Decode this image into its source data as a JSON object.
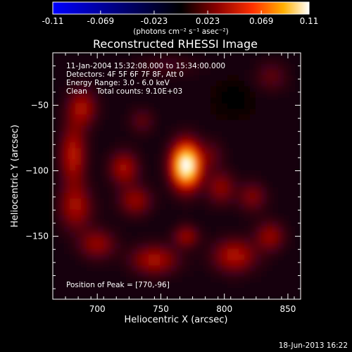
{
  "colorbar": {
    "tick_labels": [
      "-0.11",
      "-0.069",
      "-0.023",
      "0.023",
      "0.069",
      "0.11"
    ],
    "tick_values": [
      -0.11,
      -0.069,
      -0.023,
      0.023,
      0.069,
      0.11
    ],
    "range": [
      -0.11,
      0.11
    ],
    "units_label": "(photons cm⁻² s⁻¹ asec⁻²)",
    "colors": [
      "#0000ff",
      "#000000",
      "#b00000",
      "#ff8000",
      "#ffffff"
    ]
  },
  "plot": {
    "title": "Reconstructed RHESSI Image",
    "xlabel": "Heliocentric X (arcsec)",
    "ylabel": "Heliocentric Y (arcsec)",
    "info_lines": [
      "11-Jan-2004 15:32:08.000 to 15:34:00.000",
      "Detectors: 4F 5F 6F 7F 8F, Att 0",
      "Energy Range: 3.0 - 6.0 keV",
      "Clean    Total counts: 9.10E+03"
    ],
    "peak_text": "Position of Peak = [770,-96]",
    "frame_color": "#ffffff"
  },
  "chart_data": {
    "type": "heatmap",
    "title": "Reconstructed RHESSI Image",
    "xlabel": "Heliocentric X (arcsec)",
    "ylabel": "Heliocentric Y (arcsec)",
    "xlim": [
      665,
      860
    ],
    "ylim": [
      -198,
      -10
    ],
    "x_ticks": [
      700,
      750,
      800,
      850
    ],
    "y_ticks": [
      -50,
      -100,
      -150
    ],
    "x_tick_labels": [
      "700",
      "750",
      "800",
      "850"
    ],
    "y_tick_labels": [
      "−50",
      "−100",
      "−150"
    ],
    "value_range": [
      -0.11,
      0.11
    ],
    "peak": {
      "x": 770,
      "y": -96,
      "value": 0.11
    },
    "sources": [
      {
        "x": 770,
        "y": -96,
        "sx": 8,
        "sy": 12,
        "amp": 0.11
      },
      {
        "x": 688,
        "y": -52,
        "sx": 8,
        "sy": 10,
        "amp": 0.035
      },
      {
        "x": 681,
        "y": -88,
        "sx": 7,
        "sy": 16,
        "amp": 0.04
      },
      {
        "x": 683,
        "y": -128,
        "sx": 9,
        "sy": 12,
        "amp": 0.034
      },
      {
        "x": 700,
        "y": -156,
        "sx": 10,
        "sy": 8,
        "amp": 0.03
      },
      {
        "x": 721,
        "y": -98,
        "sx": 8,
        "sy": 9,
        "amp": 0.035
      },
      {
        "x": 730,
        "y": -123,
        "sx": 9,
        "sy": 8,
        "amp": 0.03
      },
      {
        "x": 745,
        "y": -168,
        "sx": 13,
        "sy": 8,
        "amp": 0.036
      },
      {
        "x": 770,
        "y": -150,
        "sx": 7,
        "sy": 6,
        "amp": 0.03
      },
      {
        "x": 808,
        "y": -165,
        "sx": 12,
        "sy": 9,
        "amp": 0.038
      },
      {
        "x": 836,
        "y": -150,
        "sx": 8,
        "sy": 8,
        "amp": 0.03
      },
      {
        "x": 797,
        "y": -113,
        "sx": 8,
        "sy": 9,
        "amp": 0.028
      },
      {
        "x": 822,
        "y": -120,
        "sx": 8,
        "sy": 8,
        "amp": 0.025
      },
      {
        "x": 735,
        "y": -62,
        "sx": 7,
        "sy": 7,
        "amp": 0.018
      },
      {
        "x": 790,
        "y": -88,
        "sx": 7,
        "sy": 8,
        "amp": 0.016
      },
      {
        "x": 837,
        "y": -28,
        "sx": 9,
        "sy": 8,
        "amp": 0.018
      },
      {
        "x": 808,
        "y": -45,
        "sx": 8,
        "sy": 7,
        "amp": -0.008
      },
      {
        "x": 755,
        "y": -20,
        "sx": 18,
        "sy": 6,
        "amp": 0.012
      }
    ]
  },
  "footer": {
    "timestamp": "18-Jun-2013 16:22"
  }
}
